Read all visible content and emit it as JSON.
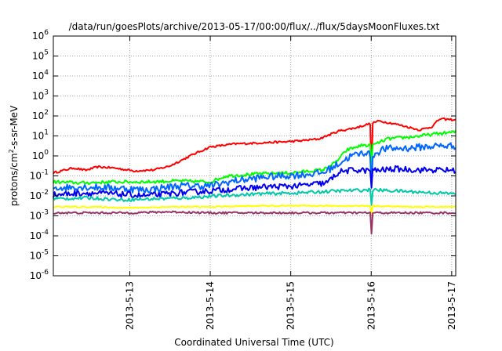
{
  "chart_data": {
    "type": "line",
    "title": "/data/run/goesPlots/archive/2013-05-17/00:00/flux/../flux/5daysMoonFluxes.txt",
    "xlabel": "Coordinated Universal Time (UTC)",
    "ylabel": "protons/cm^2-s-sr-MeV",
    "ylabel_parts": {
      "pre": "protons/cm",
      "sup": "2",
      "post": "-s-sr-MeV"
    },
    "yscale": "log",
    "ylim_exp": [
      -6,
      6
    ],
    "y_ticks": [
      {
        "base": "10",
        "exp": "-6",
        "value": -6
      },
      {
        "base": "10",
        "exp": "-5",
        "value": -5
      },
      {
        "base": "10",
        "exp": "-4",
        "value": -4
      },
      {
        "base": "10",
        "exp": "-3",
        "value": -3
      },
      {
        "base": "10",
        "exp": "-2",
        "value": -2
      },
      {
        "base": "10",
        "exp": "-1",
        "value": -1
      },
      {
        "base": "10",
        "exp": "0",
        "value": 0
      },
      {
        "base": "10",
        "exp": "1",
        "value": 1
      },
      {
        "base": "10",
        "exp": "2",
        "value": 2
      },
      {
        "base": "10",
        "exp": "3",
        "value": 3
      },
      {
        "base": "10",
        "exp": "4",
        "value": 4
      },
      {
        "base": "10",
        "exp": "5",
        "value": 5
      },
      {
        "base": "10",
        "exp": "6",
        "value": 6
      }
    ],
    "xlim_days": [
      12.05,
      17.05
    ],
    "x_ticks": [
      {
        "label": "2013-5-13",
        "day": 13
      },
      {
        "label": "2013-5-14",
        "day": 14
      },
      {
        "label": "2013-5-15",
        "day": 15
      },
      {
        "label": "2013-5-16",
        "day": 16
      },
      {
        "label": "2013-5-17",
        "day": 17
      }
    ],
    "grid": true,
    "series": [
      {
        "color": "#ff0000",
        "noise": 0.05,
        "points": [
          [
            12.05,
            -0.85
          ],
          [
            12.15,
            -0.75
          ],
          [
            12.3,
            -0.6
          ],
          [
            12.45,
            -0.72
          ],
          [
            12.6,
            -0.55
          ],
          [
            12.8,
            -0.6
          ],
          [
            13.05,
            -0.75
          ],
          [
            13.3,
            -0.7
          ],
          [
            13.5,
            -0.5
          ],
          [
            13.8,
            0.1
          ],
          [
            14.0,
            0.45
          ],
          [
            14.3,
            0.6
          ],
          [
            14.6,
            0.65
          ],
          [
            14.9,
            0.7
          ],
          [
            15.1,
            0.75
          ],
          [
            15.35,
            0.85
          ],
          [
            15.6,
            1.25
          ],
          [
            15.8,
            1.4
          ],
          [
            16.1,
            1.75
          ],
          [
            16.3,
            1.6
          ],
          [
            16.6,
            1.3
          ],
          [
            16.75,
            1.45
          ],
          [
            16.85,
            1.85
          ],
          [
            17.05,
            1.8
          ]
        ]
      },
      {
        "color": "#00ff00",
        "noise": 0.08,
        "points": [
          [
            12.05,
            -1.3
          ],
          [
            12.4,
            -1.35
          ],
          [
            12.8,
            -1.3
          ],
          [
            13.2,
            -1.3
          ],
          [
            13.6,
            -1.25
          ],
          [
            14.0,
            -1.3
          ],
          [
            14.2,
            -1.0
          ],
          [
            14.6,
            -0.9
          ],
          [
            15.0,
            -0.85
          ],
          [
            15.4,
            -0.7
          ],
          [
            15.55,
            -0.35
          ],
          [
            15.7,
            0.3
          ],
          [
            15.9,
            0.55
          ],
          [
            16.0,
            0.5
          ],
          [
            16.2,
            0.85
          ],
          [
            16.5,
            0.95
          ],
          [
            16.8,
            1.1
          ],
          [
            17.05,
            1.2
          ]
        ]
      },
      {
        "color": "#0066ff",
        "noise": 0.18,
        "points": [
          [
            12.05,
            -1.6
          ],
          [
            12.4,
            -1.55
          ],
          [
            12.8,
            -1.6
          ],
          [
            13.2,
            -1.7
          ],
          [
            13.6,
            -1.5
          ],
          [
            14.0,
            -1.5
          ],
          [
            14.3,
            -1.25
          ],
          [
            14.7,
            -1.05
          ],
          [
            15.1,
            -0.95
          ],
          [
            15.4,
            -0.85
          ],
          [
            15.55,
            -0.5
          ],
          [
            15.75,
            0.0
          ],
          [
            15.95,
            0.2
          ],
          [
            16.0,
            0.0
          ],
          [
            16.15,
            0.35
          ],
          [
            16.5,
            0.4
          ],
          [
            16.8,
            0.5
          ],
          [
            17.05,
            0.5
          ]
        ]
      },
      {
        "color": "#0000ee",
        "noise": 0.15,
        "points": [
          [
            12.05,
            -1.95
          ],
          [
            12.4,
            -1.85
          ],
          [
            12.8,
            -1.9
          ],
          [
            13.2,
            -2.0
          ],
          [
            13.6,
            -1.85
          ],
          [
            14.0,
            -1.75
          ],
          [
            14.3,
            -1.65
          ],
          [
            14.7,
            -1.55
          ],
          [
            15.1,
            -1.5
          ],
          [
            15.45,
            -1.35
          ],
          [
            15.6,
            -0.8
          ],
          [
            15.8,
            -0.7
          ],
          [
            16.0,
            -0.75
          ],
          [
            16.3,
            -0.65
          ],
          [
            16.6,
            -0.7
          ],
          [
            17.05,
            -0.72
          ]
        ]
      },
      {
        "color": "#00c8a8",
        "noise": 0.08,
        "points": [
          [
            12.05,
            -2.15
          ],
          [
            12.5,
            -2.1
          ],
          [
            12.9,
            -2.2
          ],
          [
            13.3,
            -2.15
          ],
          [
            13.7,
            -2.1
          ],
          [
            14.1,
            -2.0
          ],
          [
            14.6,
            -1.9
          ],
          [
            15.1,
            -1.85
          ],
          [
            15.6,
            -1.75
          ],
          [
            16.0,
            -1.7
          ],
          [
            16.3,
            -1.75
          ],
          [
            16.8,
            -1.85
          ],
          [
            17.05,
            -1.9
          ]
        ]
      },
      {
        "color": "#ffff00",
        "noise": 0.03,
        "points": [
          [
            12.05,
            -2.55
          ],
          [
            12.5,
            -2.55
          ],
          [
            13.0,
            -2.6
          ],
          [
            13.5,
            -2.55
          ],
          [
            14.0,
            -2.55
          ],
          [
            14.5,
            -2.5
          ],
          [
            15.0,
            -2.5
          ],
          [
            15.5,
            -2.5
          ],
          [
            16.0,
            -2.5
          ],
          [
            16.5,
            -2.55
          ],
          [
            17.05,
            -2.55
          ]
        ]
      },
      {
        "color": "#993366",
        "noise": 0.05,
        "points": [
          [
            12.05,
            -2.85
          ],
          [
            12.5,
            -2.85
          ],
          [
            13.0,
            -2.85
          ],
          [
            13.5,
            -2.8
          ],
          [
            14.0,
            -2.85
          ],
          [
            14.5,
            -2.85
          ],
          [
            15.0,
            -2.85
          ],
          [
            15.5,
            -2.85
          ],
          [
            16.0,
            -2.85
          ],
          [
            16.5,
            -2.85
          ],
          [
            17.05,
            -2.85
          ]
        ]
      }
    ],
    "dips": [
      {
        "day": 16.0,
        "min": [
          -1.0,
          -0.6,
          -1.5,
          -1.6,
          -2.45,
          -2.9,
          -3.9
        ]
      }
    ]
  }
}
